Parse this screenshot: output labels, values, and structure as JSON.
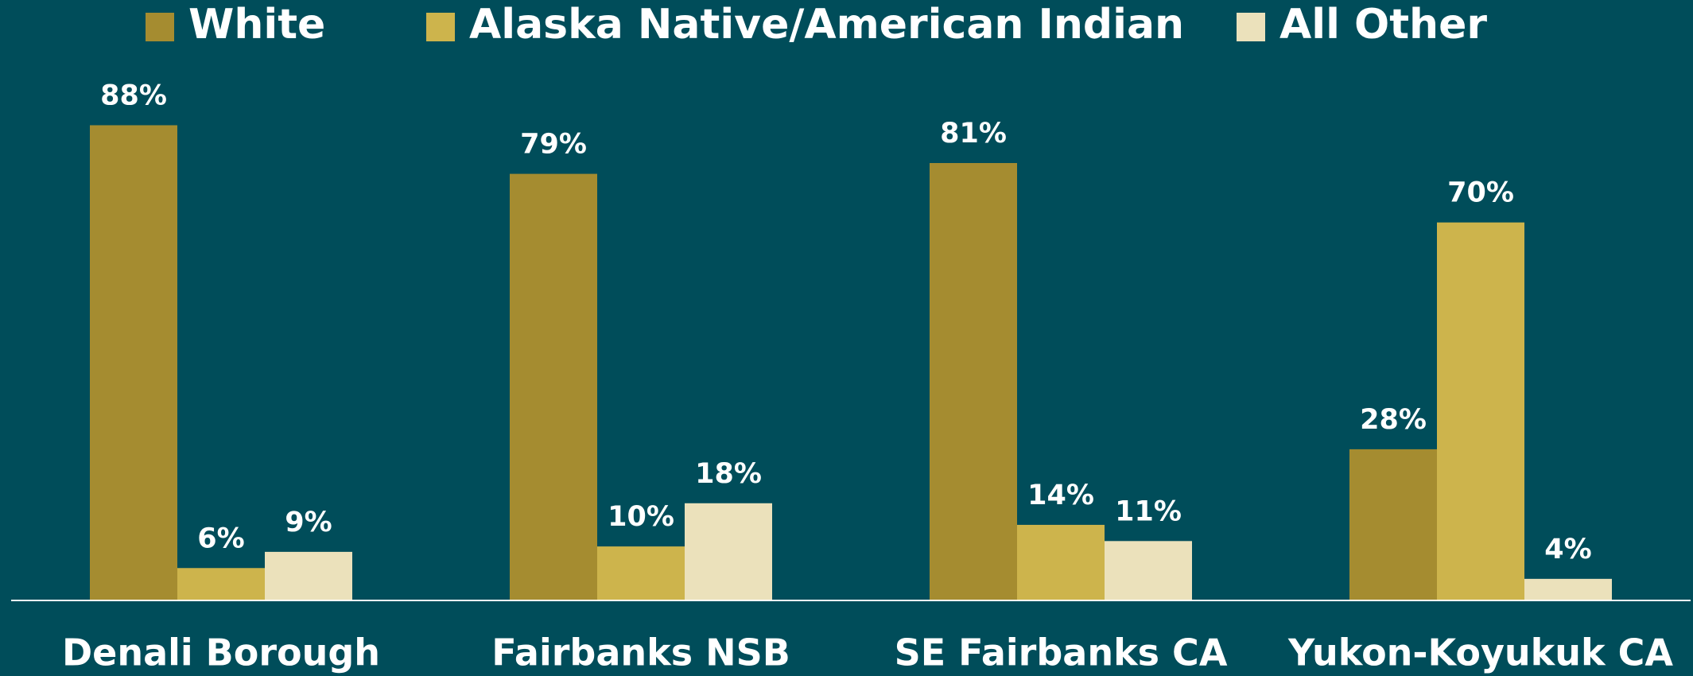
{
  "chart_data": {
    "type": "bar",
    "categories": [
      "Denali Borough",
      "Fairbanks NSB",
      "SE Fairbanks CA",
      "Yukon-Koyukuk CA"
    ],
    "series": [
      {
        "name": "White",
        "color": "#a58c30",
        "values": [
          88,
          79,
          81,
          28
        ],
        "value_labels": [
          "88%",
          "79%",
          "81%",
          "28%"
        ]
      },
      {
        "name": "Alaska Native/American Indian",
        "color": "#cdb44c",
        "values": [
          6,
          10,
          14,
          70
        ],
        "value_labels": [
          "6%",
          "10%",
          "14%",
          "70%"
        ]
      },
      {
        "name": "All Other",
        "color": "#ebe1bb",
        "values": [
          9,
          18,
          11,
          4
        ],
        "value_labels": [
          "9%",
          "18%",
          "11%",
          "4%"
        ]
      }
    ],
    "legend": "top"
  }
}
